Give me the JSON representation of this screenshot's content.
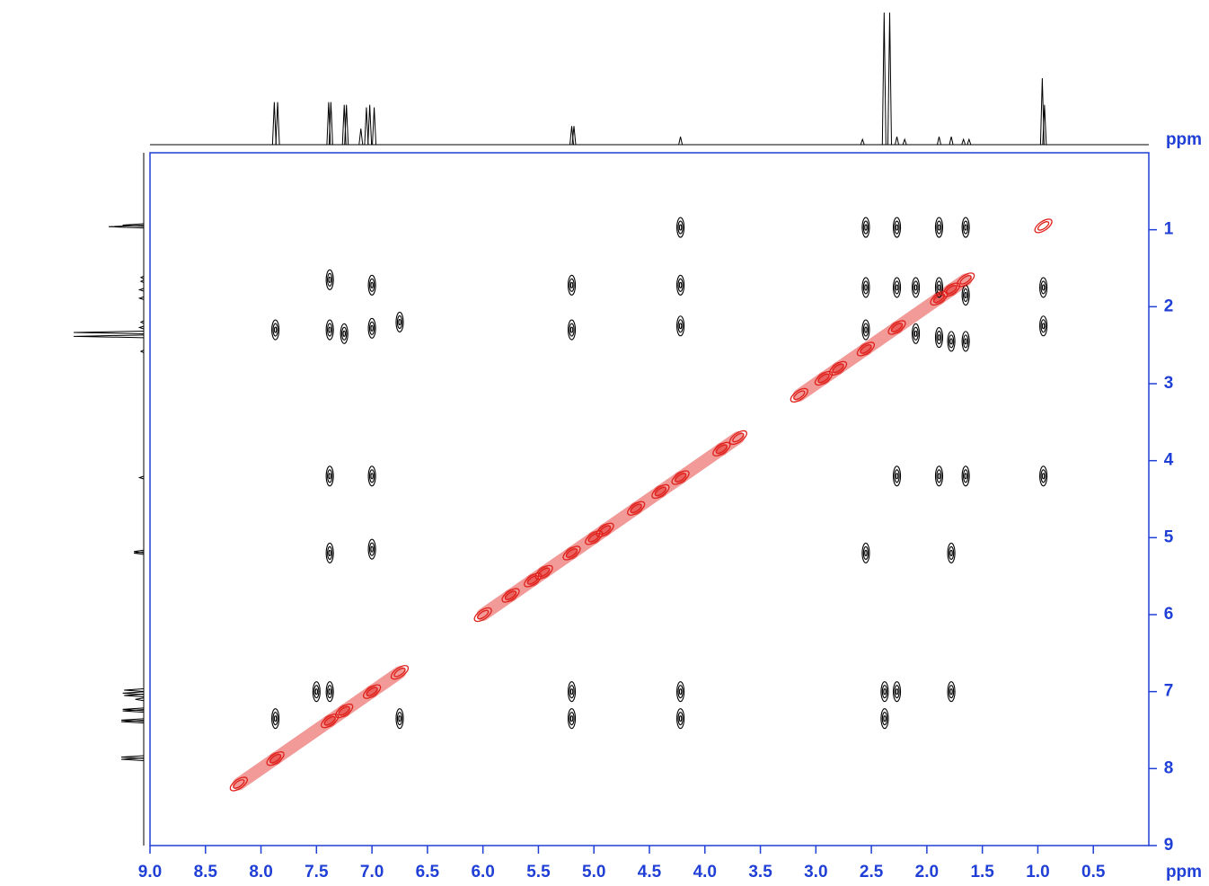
{
  "chart_data": {
    "type": "contour",
    "xlabel": "ppm",
    "ylabel": "ppm",
    "axis_color": "#1f3fd6",
    "xlim": [
      9,
      0
    ],
    "ylim": [
      0,
      9
    ],
    "xticks": [
      {
        "value": 9,
        "label": "9.0"
      },
      {
        "value": 8.5,
        "label": "8.5"
      },
      {
        "value": 8,
        "label": "8.0"
      },
      {
        "value": 7.5,
        "label": "7.5"
      },
      {
        "value": 7,
        "label": "7.0"
      },
      {
        "value": 6.5,
        "label": "6.5"
      },
      {
        "value": 6,
        "label": "6.0"
      },
      {
        "value": 5.5,
        "label": "5.5"
      },
      {
        "value": 5,
        "label": "5.0"
      },
      {
        "value": 4.5,
        "label": "4.5"
      },
      {
        "value": 4,
        "label": "4.0"
      },
      {
        "value": 3.5,
        "label": "3.5"
      },
      {
        "value": 3,
        "label": "3.0"
      },
      {
        "value": 2.5,
        "label": "2.5"
      },
      {
        "value": 2,
        "label": "2.0"
      },
      {
        "value": 1.5,
        "label": "1.5"
      },
      {
        "value": 1,
        "label": "1.0"
      },
      {
        "value": 0.5,
        "label": "0.5"
      }
    ],
    "yticks": [
      1,
      2,
      3,
      4,
      5,
      6,
      7,
      8,
      9
    ],
    "series": [
      {
        "color": "#000000",
        "x": [
          4.22,
          2.55,
          2.27,
          1.89,
          1.65,
          7.38,
          7.0,
          5.2,
          4.22,
          2.55,
          2.27,
          2.1,
          1.89,
          1.65,
          0.95,
          7.87,
          7.38,
          7.25,
          7.0,
          6.75,
          5.2,
          4.22,
          2.55,
          2.1,
          1.89,
          1.78,
          1.65,
          0.95,
          7.38,
          7.0,
          2.27,
          1.89,
          1.65,
          0.95,
          7.38,
          7.0,
          2.55,
          1.78,
          7.5,
          7.38,
          5.2,
          4.22,
          2.38,
          2.27,
          1.78,
          7.87,
          6.75,
          5.2,
          4.22,
          2.38
        ],
        "values": [
          0.97,
          0.97,
          0.97,
          0.97,
          0.97,
          1.65,
          1.72,
          1.72,
          1.72,
          1.75,
          1.75,
          1.75,
          1.75,
          1.85,
          1.75,
          2.3,
          2.3,
          2.35,
          2.28,
          2.2,
          2.3,
          2.25,
          2.3,
          2.35,
          2.4,
          2.45,
          2.45,
          2.25,
          4.2,
          4.2,
          4.2,
          4.2,
          4.2,
          4.2,
          5.2,
          5.15,
          5.2,
          5.2,
          7.0,
          7.0,
          7.0,
          7.0,
          7.0,
          7.0,
          7.0,
          7.35,
          7.35,
          7.35,
          7.35,
          7.35
        ]
      },
      {
        "color": "#e0201a",
        "x": [
          8.2,
          7.87,
          7.38,
          7.25,
          7.0,
          6.75,
          6.0,
          5.75,
          5.55,
          5.45,
          5.2,
          5.0,
          4.9,
          4.62,
          4.4,
          4.22,
          3.85,
          3.7,
          3.15,
          2.93,
          2.8,
          2.55,
          2.27,
          1.89,
          1.78,
          1.65,
          0.95
        ],
        "values": [
          8.2,
          7.87,
          7.38,
          7.25,
          7.0,
          6.75,
          6.0,
          5.75,
          5.55,
          5.45,
          5.2,
          5.0,
          4.9,
          4.62,
          4.4,
          4.22,
          3.85,
          3.7,
          3.15,
          2.93,
          2.8,
          2.55,
          2.27,
          1.89,
          1.78,
          1.65,
          0.95
        ]
      }
    ],
    "projection": {
      "color": "#000000",
      "x": [
        7.88,
        7.85,
        7.39,
        7.37,
        7.25,
        7.23,
        7.1,
        7.05,
        7.02,
        6.98,
        5.2,
        5.18,
        4.22,
        2.58,
        2.385,
        2.335,
        2.27,
        2.2,
        1.89,
        1.78,
        1.67,
        1.62,
        0.96,
        0.94
      ],
      "values": [
        32,
        32,
        32,
        32,
        30,
        30,
        12,
        28,
        30,
        28,
        14,
        14,
        6,
        4,
        100,
        100,
        6,
        4,
        6,
        6,
        4,
        4,
        50,
        30
      ]
    }
  }
}
